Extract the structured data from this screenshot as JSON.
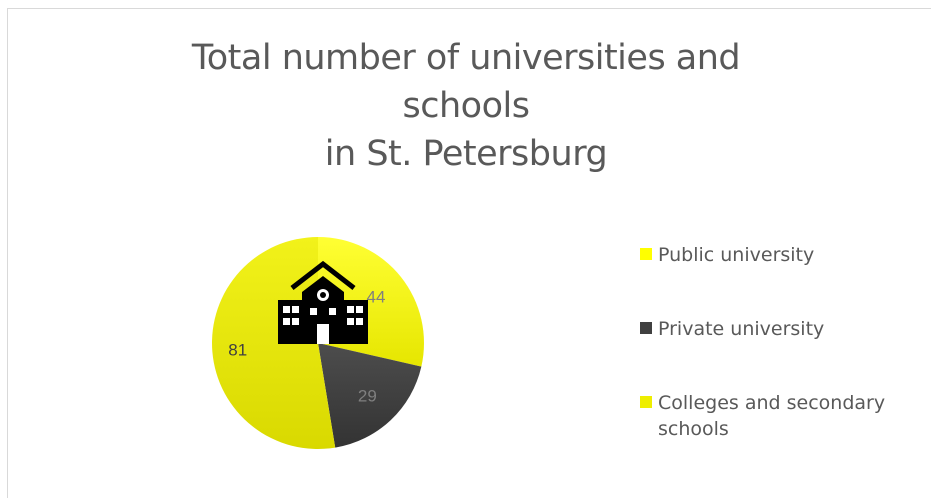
{
  "chart_data": {
    "type": "pie",
    "title": [
      "Total number of universities and",
      "schools",
      "in St. Petersburg"
    ],
    "slices": [
      {
        "name": "Public university",
        "value": 44,
        "color": "#FFFF00"
      },
      {
        "name": "Private university",
        "value": 29,
        "color": "#404040"
      },
      {
        "name": "Colleges and secondary schools",
        "value": 81,
        "color": "#EEEE00"
      }
    ],
    "legend_position": "right",
    "icon": "school-building-icon"
  }
}
